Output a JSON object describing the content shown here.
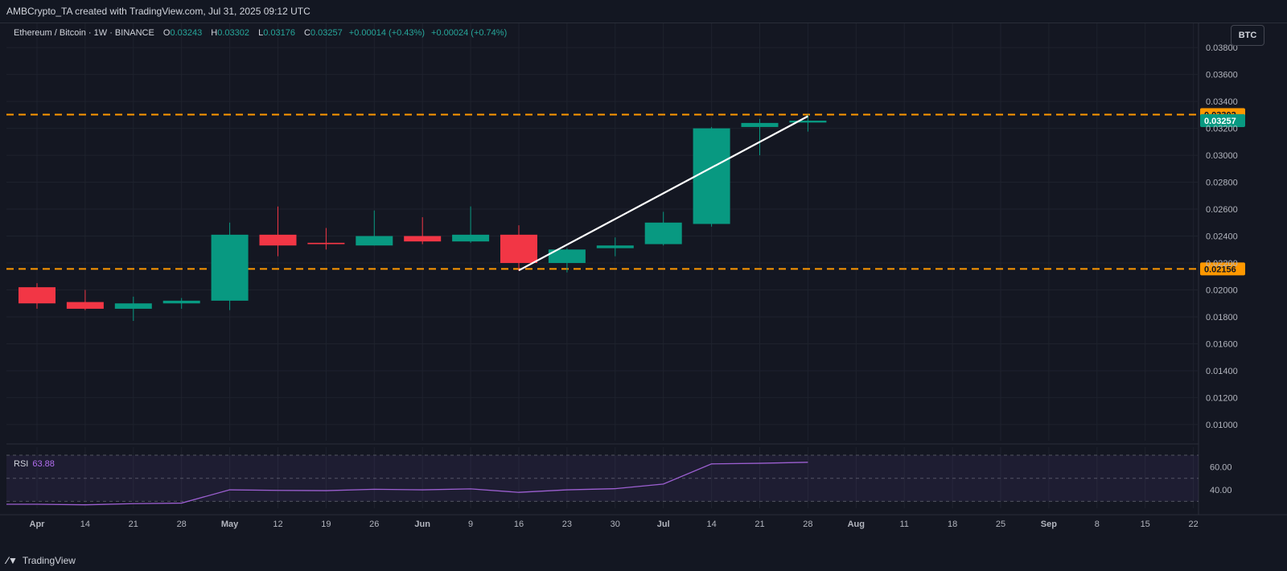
{
  "header": {
    "credit": "AMBCrypto_TA created with TradingView.com, Jul 31, 2025 09:12 UTC"
  },
  "legend": {
    "symbol": "Ethereum / Bitcoin · 1W · BINANCE",
    "o_label": "O",
    "o_value": "0.03243",
    "h_label": "H",
    "h_value": "0.03302",
    "l_label": "L",
    "l_value": "0.03176",
    "c_label": "C",
    "c_value": "0.03257",
    "change": "+0.00014 (+0.43%)",
    "change2": "+0.00024 (+0.74%)"
  },
  "currency": "BTC",
  "rsi": {
    "label": "RSI",
    "value": "63.88"
  },
  "footer": {
    "brand": "TradingView"
  },
  "colors": {
    "up": "#089981",
    "down": "#f23645",
    "level": "#ff9800",
    "rsi": "#9c5fd1",
    "trend": "#ffffff",
    "grid": "#1e222d"
  },
  "chart_data": {
    "type": "candlestick",
    "title": "Ethereum / Bitcoin · 1W · BINANCE",
    "y_ticks": [
      "0.03800",
      "0.03600",
      "0.03400",
      "0.03200",
      "0.03000",
      "0.02800",
      "0.02600",
      "0.02400",
      "0.02200",
      "0.02000",
      "0.01800",
      "0.01600",
      "0.01400",
      "0.01200",
      "0.01000"
    ],
    "y_tick_values": [
      0.038,
      0.036,
      0.034,
      0.032,
      0.03,
      0.028,
      0.026,
      0.024,
      0.022,
      0.02,
      0.018,
      0.016,
      0.014,
      0.012,
      0.01
    ],
    "ylim": [
      0.0088,
      0.0398
    ],
    "x_ticks": [
      "Apr",
      "14",
      "21",
      "28",
      "May",
      "12",
      "19",
      "26",
      "Jun",
      "9",
      "16",
      "23",
      "30",
      "Jul",
      "14",
      "21",
      "28",
      "Aug",
      "11",
      "18",
      "25",
      "Sep",
      "8",
      "15",
      "22"
    ],
    "candles": [
      {
        "o": 0.0202,
        "h": 0.0205,
        "l": 0.0186,
        "c": 0.019
      },
      {
        "o": 0.0191,
        "h": 0.02,
        "l": 0.0185,
        "c": 0.0186
      },
      {
        "o": 0.0186,
        "h": 0.0195,
        "l": 0.0177,
        "c": 0.019
      },
      {
        "o": 0.019,
        "h": 0.0194,
        "l": 0.0186,
        "c": 0.0192
      },
      {
        "o": 0.0192,
        "h": 0.025,
        "l": 0.0185,
        "c": 0.0241
      },
      {
        "o": 0.0241,
        "h": 0.0262,
        "l": 0.0225,
        "c": 0.0233
      },
      {
        "o": 0.0235,
        "h": 0.0246,
        "l": 0.023,
        "c": 0.0234
      },
      {
        "o": 0.0233,
        "h": 0.0259,
        "l": 0.0233,
        "c": 0.024
      },
      {
        "o": 0.024,
        "h": 0.0254,
        "l": 0.0234,
        "c": 0.0236
      },
      {
        "o": 0.0236,
        "h": 0.0262,
        "l": 0.0235,
        "c": 0.0241
      },
      {
        "o": 0.0241,
        "h": 0.0248,
        "l": 0.0214,
        "c": 0.022
      },
      {
        "o": 0.022,
        "h": 0.0231,
        "l": 0.0213,
        "c": 0.023
      },
      {
        "o": 0.0231,
        "h": 0.0239,
        "l": 0.0225,
        "c": 0.0233
      },
      {
        "o": 0.0234,
        "h": 0.0258,
        "l": 0.0233,
        "c": 0.025
      },
      {
        "o": 0.0249,
        "h": 0.0321,
        "l": 0.0247,
        "c": 0.032
      },
      {
        "o": 0.0321,
        "h": 0.0327,
        "l": 0.03,
        "c": 0.0324
      },
      {
        "o": 0.03243,
        "h": 0.03302,
        "l": 0.03176,
        "c": 0.03257
      }
    ],
    "levels": [
      {
        "value": 0.03302,
        "label": "0.03302"
      },
      {
        "value": 0.02156,
        "label": "0.02156"
      }
    ],
    "last_price": {
      "value": 0.03257,
      "label": "0.03257"
    },
    "trendline": {
      "from": {
        "candle": 10,
        "price": 0.02145
      },
      "to": {
        "candle": 16,
        "price": 0.0329
      }
    },
    "rsi": {
      "values": [
        27.5,
        27.0,
        28.0,
        28.5,
        40.0,
        39.5,
        39.3,
        40.5,
        40.0,
        40.8,
        37.8,
        40.0,
        41.0,
        45.0,
        62.5,
        63.0,
        63.88
      ],
      "ticks": [
        "60.00",
        "40.00"
      ],
      "tick_values": [
        60,
        40
      ],
      "ylim": [
        24,
        77
      ],
      "band": [
        30,
        70
      ]
    }
  }
}
